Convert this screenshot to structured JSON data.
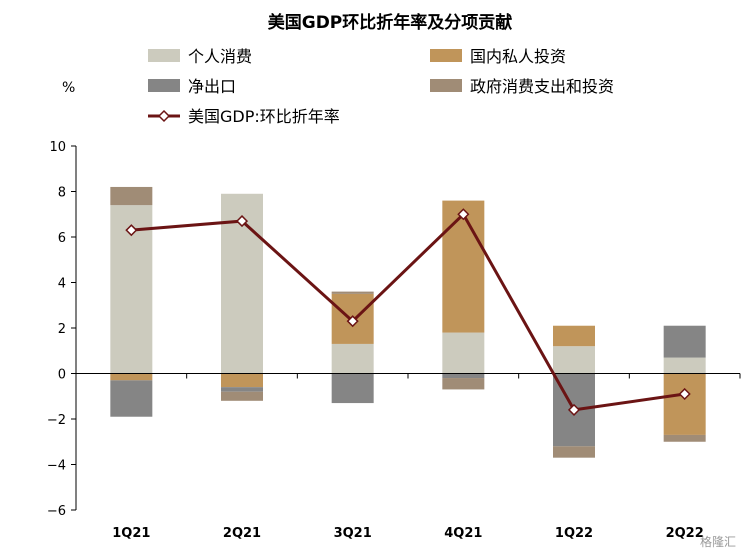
{
  "chart_data": {
    "type": "bar",
    "title": "美国GDP环比折年率及分项贡献",
    "unit_label": "%",
    "categories": [
      "1Q21",
      "2Q21",
      "3Q21",
      "4Q21",
      "1Q22",
      "2Q22"
    ],
    "ylim": [
      -6,
      10
    ],
    "yticks": [
      -6,
      -4,
      -2,
      0,
      2,
      4,
      6,
      8,
      10
    ],
    "stacked": true,
    "series": [
      {
        "name": "个人消费",
        "type": "bar",
        "color": "#cccbbe",
        "values": [
          7.4,
          7.9,
          1.3,
          1.8,
          1.2,
          0.7
        ]
      },
      {
        "name": "国内私人投资",
        "type": "bar",
        "color": "#c0955a",
        "values": [
          -0.3,
          -0.6,
          2.2,
          5.8,
          0.9,
          -2.7
        ]
      },
      {
        "name": "净出口",
        "type": "bar",
        "color": "#858585",
        "values": [
          -1.6,
          -0.2,
          -1.3,
          -0.2,
          -3.2,
          1.4
        ]
      },
      {
        "name": "政府消费支出和投资",
        "type": "bar",
        "color": "#a08c76",
        "values": [
          0.8,
          -0.4,
          0.1,
          -0.5,
          -0.5,
          -0.3
        ]
      },
      {
        "name": "美国GDP:环比折年率",
        "type": "line",
        "color": "#6b1414",
        "values": [
          6.3,
          6.7,
          2.3,
          7.0,
          -1.6,
          -0.9
        ]
      }
    ],
    "grid": false,
    "legend": "top"
  },
  "watermark": "格隆汇"
}
